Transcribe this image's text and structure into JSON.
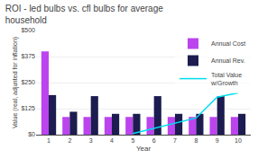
{
  "chart_data": {
    "type": "bar",
    "title": "ROI - led bulbs vs. cfl bulbs for average\nhousehold",
    "xlabel": "Year",
    "ylabel": "Value (real, adjusted for inflation)",
    "x": [
      1,
      2,
      3,
      4,
      5,
      6,
      7,
      8,
      9,
      10
    ],
    "series": [
      {
        "name": "Annual Cost",
        "type": "bar",
        "color": "#bb44ee",
        "values": [
          400,
          85,
          85,
          85,
          85,
          85,
          85,
          85,
          85,
          85
        ]
      },
      {
        "name": "Annual Rev.",
        "type": "bar",
        "color": "#1c1c50",
        "values": [
          190,
          110,
          185,
          100,
          100,
          185,
          100,
          100,
          185,
          100
        ]
      },
      {
        "name": "Total Value\nw/Growth",
        "type": "line",
        "color": "#00ddee",
        "values": [
          null,
          null,
          null,
          null,
          5,
          30,
          55,
          80,
          180,
          200
        ]
      }
    ],
    "xlim": [
      0.4,
      10.6
    ],
    "xticks": [
      1,
      2,
      3,
      4,
      5,
      6,
      7,
      8,
      9,
      10
    ],
    "ylim": [
      0,
      500
    ],
    "yticks": [
      {
        "value": 0,
        "label": "$0"
      },
      {
        "value": 125,
        "label": "$125"
      },
      {
        "value": 250,
        "label": "$250"
      },
      {
        "value": 375,
        "label": "$375"
      },
      {
        "value": 500,
        "label": "$500"
      }
    ],
    "grid": "y",
    "legend": "upper right"
  }
}
